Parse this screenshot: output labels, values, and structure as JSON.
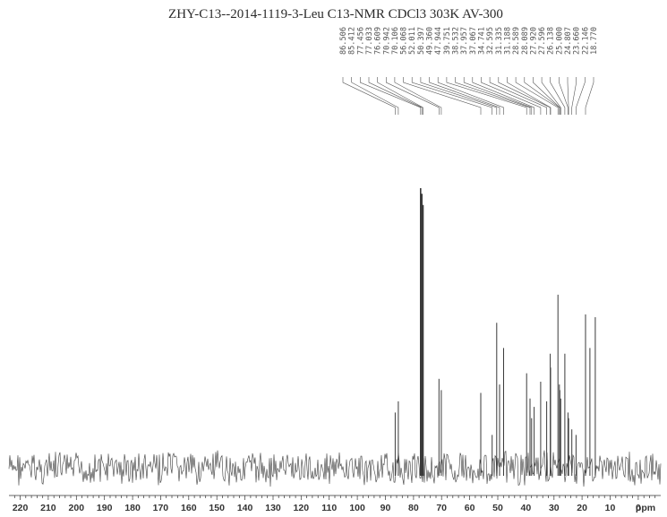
{
  "chart_data": {
    "type": "line",
    "title": "ZHY-C13--2014-1119-3-Leu  C13-NMR  CDCl3   303K   AV-300",
    "xlabel": "ppm",
    "ylabel": "",
    "xlim": [
      224,
      -8
    ],
    "x_reversed": true,
    "grid": false,
    "tick_values": [
      220,
      210,
      200,
      190,
      180,
      170,
      160,
      150,
      140,
      130,
      120,
      110,
      100,
      90,
      80,
      70,
      60,
      50,
      40,
      30,
      20,
      10,
      0
    ],
    "tick_labels": [
      "220",
      "210",
      "200",
      "190",
      "180",
      "170",
      "160",
      "150",
      "140",
      "130",
      "120",
      "110",
      "100",
      "90",
      "80",
      "70",
      "60",
      "50",
      "40",
      "30",
      "20",
      "10",
      "0"
    ],
    "peak_labels": [
      "86.506",
      "85.412",
      "77.456",
      "77.033",
      "76.609",
      "70.942",
      "70.106",
      "56.068",
      "52.011",
      "50.397",
      "49.360",
      "47.944",
      "39.751",
      "38.532",
      "37.957",
      "37.067",
      "34.741",
      "32.595",
      "31.335",
      "31.188",
      "28.589",
      "28.089",
      "27.920",
      "27.596",
      "26.138",
      "25.000",
      "24.807",
      "23.660",
      "22.146",
      "18.770"
    ],
    "peaks": [
      {
        "ppm": 86.506,
        "intensity": 0.2
      },
      {
        "ppm": 85.412,
        "intensity": 0.24
      },
      {
        "ppm": 77.456,
        "intensity": 1.0
      },
      {
        "ppm": 77.033,
        "intensity": 0.98
      },
      {
        "ppm": 76.609,
        "intensity": 0.94
      },
      {
        "ppm": 70.942,
        "intensity": 0.32
      },
      {
        "ppm": 70.106,
        "intensity": 0.28
      },
      {
        "ppm": 56.068,
        "intensity": 0.27
      },
      {
        "ppm": 52.011,
        "intensity": 0.12
      },
      {
        "ppm": 50.397,
        "intensity": 0.52
      },
      {
        "ppm": 49.36,
        "intensity": 0.3
      },
      {
        "ppm": 47.944,
        "intensity": 0.43
      },
      {
        "ppm": 39.751,
        "intensity": 0.34
      },
      {
        "ppm": 38.532,
        "intensity": 0.25
      },
      {
        "ppm": 37.957,
        "intensity": 0.18
      },
      {
        "ppm": 37.067,
        "intensity": 0.22
      },
      {
        "ppm": 34.741,
        "intensity": 0.31
      },
      {
        "ppm": 32.595,
        "intensity": 0.24
      },
      {
        "ppm": 31.335,
        "intensity": 0.41
      },
      {
        "ppm": 31.188,
        "intensity": 0.36
      },
      {
        "ppm": 28.589,
        "intensity": 0.62
      },
      {
        "ppm": 28.089,
        "intensity": 0.3
      },
      {
        "ppm": 27.92,
        "intensity": 0.28
      },
      {
        "ppm": 27.596,
        "intensity": 0.25
      },
      {
        "ppm": 26.138,
        "intensity": 0.41
      },
      {
        "ppm": 25.0,
        "intensity": 0.2
      },
      {
        "ppm": 24.807,
        "intensity": 0.18
      },
      {
        "ppm": 23.66,
        "intensity": 0.14
      },
      {
        "ppm": 22.146,
        "intensity": 0.12
      },
      {
        "ppm": 18.77,
        "intensity": 0.55
      },
      {
        "ppm": 17.2,
        "intensity": 0.43
      },
      {
        "ppm": 15.3,
        "intensity": 0.54
      }
    ],
    "colors": {
      "trace": "#3a3a3a",
      "text": "#2a2a2a",
      "label": "#555555"
    }
  }
}
